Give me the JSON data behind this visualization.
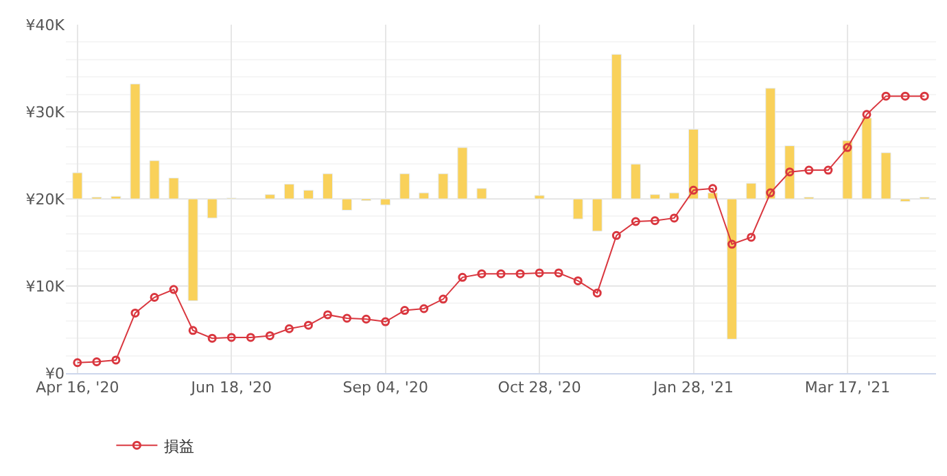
{
  "chart_data": {
    "type": "bar",
    "categories": [
      "Apr 16, '20",
      null,
      null,
      null,
      null,
      null,
      null,
      null,
      "Jun 18, '20",
      null,
      null,
      null,
      null,
      null,
      null,
      null,
      "Sep 04, '20",
      null,
      null,
      null,
      null,
      null,
      null,
      null,
      "Oct 28, '20",
      null,
      null,
      null,
      null,
      null,
      null,
      null,
      "Jan 28, '21",
      null,
      null,
      null,
      null,
      null,
      null,
      null,
      "Mar 17, '21",
      null,
      null,
      null,
      null
    ],
    "series": [
      {
        "color": "#f9d15a",
        "base": [
          20000,
          20000,
          20000,
          20000,
          20000,
          20000,
          20000,
          20000,
          20000,
          null,
          20000,
          20000,
          20000,
          20000,
          20000,
          20000,
          20000,
          20000,
          20000,
          20000,
          20000,
          20000,
          null,
          null,
          20000,
          null,
          20000,
          20000,
          20000,
          20000,
          20000,
          20000,
          20000,
          20000,
          20000,
          20000,
          20000,
          20000,
          20000,
          null,
          20000,
          20000,
          20000,
          20000,
          20000
        ],
        "values": [
          3000,
          200,
          300,
          13200,
          4400,
          2400,
          -11700,
          -2200,
          100,
          null,
          500,
          1700,
          1000,
          2900,
          -1300,
          -200,
          -700,
          2900,
          700,
          2900,
          5900,
          1200,
          null,
          null,
          400,
          null,
          -2300,
          -3700,
          16600,
          4000,
          500,
          700,
          8000,
          700,
          -16100,
          1800,
          12700,
          6100,
          200,
          null,
          6700,
          9300,
          5300,
          -300,
          200
        ]
      },
      {
        "type": "line",
        "name": "損益",
        "color": "#d9363e",
        "marker": "circle",
        "values": [
          1200,
          1300,
          1500,
          6900,
          8700,
          9600,
          4900,
          4000,
          4100,
          4100,
          4300,
          5100,
          5500,
          6700,
          6300,
          6200,
          5900,
          7200,
          7400,
          8500,
          11000,
          11400,
          11400,
          11400,
          11500,
          11500,
          10600,
          9200,
          15800,
          17400,
          17500,
          17800,
          21000,
          21200,
          14800,
          15600,
          20700,
          23100,
          23300,
          23300,
          25900,
          29700,
          31800,
          31800,
          31800
        ]
      }
    ],
    "ylim": [
      0,
      40000
    ],
    "yticks": [
      {
        "value": 0,
        "label": "¥0"
      },
      {
        "value": 10000,
        "label": "¥10K"
      },
      {
        "value": 20000,
        "label": "¥20K"
      },
      {
        "value": 30000,
        "label": "¥30K"
      },
      {
        "value": 40000,
        "label": "¥40K"
      }
    ],
    "grid": true,
    "legend": "bottom left"
  }
}
